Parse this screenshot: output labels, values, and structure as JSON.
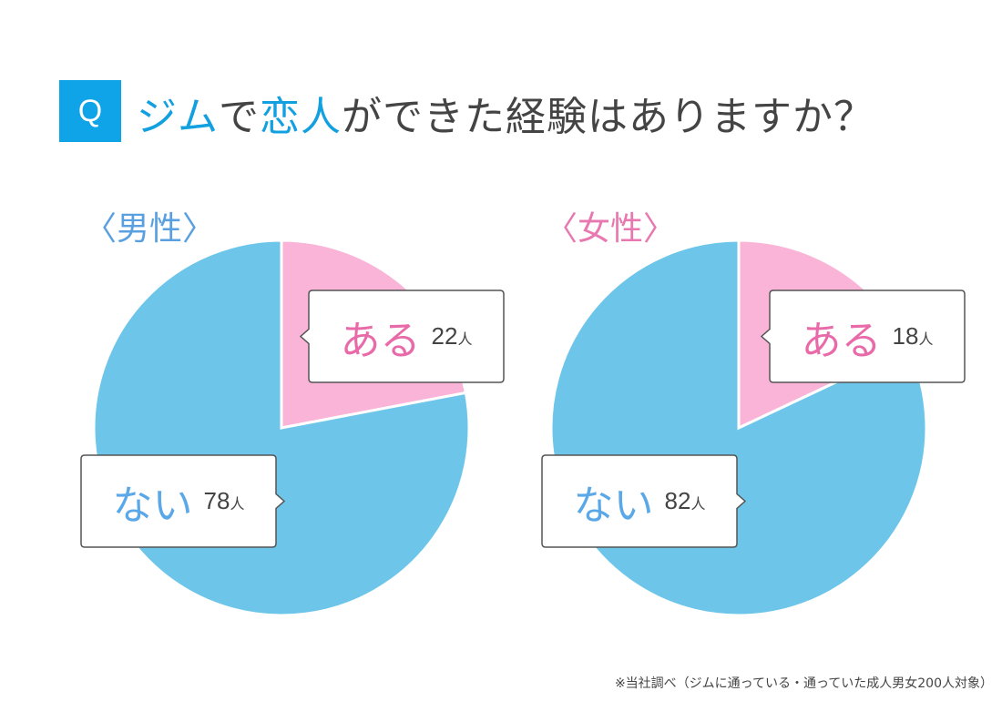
{
  "header": {
    "q_label": "Q",
    "title_parts": [
      {
        "text": "ジム",
        "highlight": true
      },
      {
        "text": "で",
        "highlight": false
      },
      {
        "text": "恋人",
        "highlight": true
      },
      {
        "text": "ができた経験はありますか？",
        "highlight": false
      }
    ]
  },
  "chart_data": [
    {
      "type": "pie",
      "title": "〈男性〉",
      "unit": "人",
      "slices": [
        {
          "label": "ある",
          "value": 22,
          "color": "#f9b4d8"
        },
        {
          "label": "ない",
          "value": 78,
          "color": "#6dc6ea"
        }
      ]
    },
    {
      "type": "pie",
      "title": "〈女性〉",
      "unit": "人",
      "slices": [
        {
          "label": "ある",
          "value": 18,
          "color": "#f9b4d8"
        },
        {
          "label": "ない",
          "value": 82,
          "color": "#6dc6ea"
        }
      ]
    }
  ],
  "colors": {
    "title_accent": "#12a0e0",
    "male_label": "#5aa0e0",
    "female_label": "#e878b0",
    "aru_text": "#e86aa8",
    "nai_text": "#5aa8e8"
  },
  "footnote": "※当社調べ（ジムに通っている・通っていた成人男女200人対象）"
}
